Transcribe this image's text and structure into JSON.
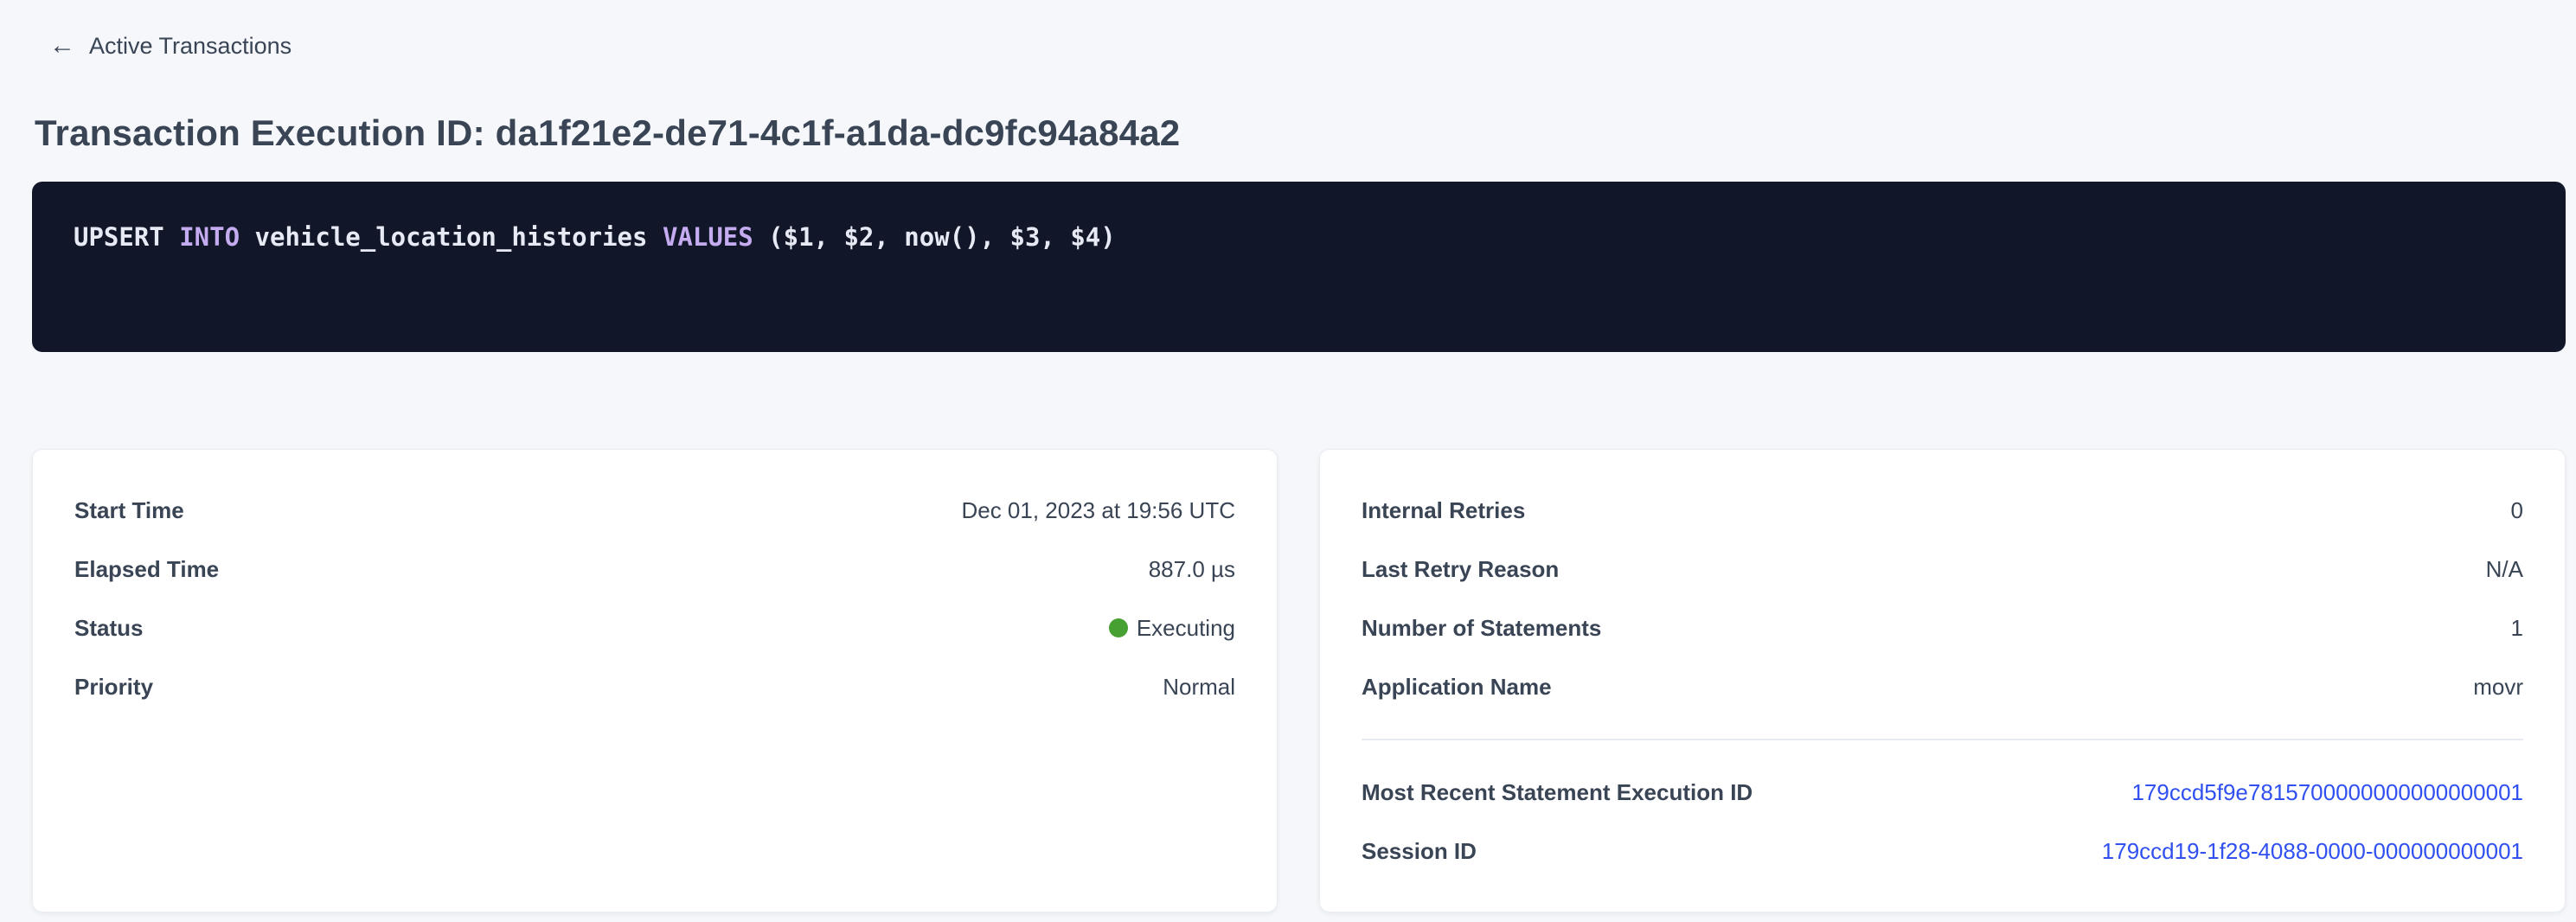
{
  "colors": {
    "page_background": "#f5f7fa",
    "card_background": "#ffffff",
    "text_primary": "#394455",
    "sql_background": "#111729",
    "sql_keyword": "#c5abf0",
    "sql_text": "#e7eaf4",
    "link_blue": "#3050f0",
    "status_executing_green": "#46a032",
    "divider": "#e7ebf1"
  },
  "header": {
    "back_icon": "arrow-left",
    "back_label": "Active Transactions",
    "title": "Transaction Execution ID: da1f21e2-de71-4c1f-a1da-dc9fc94a84a2"
  },
  "sql": {
    "statement_full": "UPSERT INTO vehicle_location_histories VALUES ($1, $2, now(), $3, $4)",
    "segments": [
      {
        "text": "UPSERT ",
        "keyword": false
      },
      {
        "text": "INTO",
        "keyword": true
      },
      {
        "text": " vehicle_location_histories ",
        "keyword": false
      },
      {
        "text": "VALUES",
        "keyword": true
      },
      {
        "text": " ($1, $2, now(), $3, $4)",
        "keyword": false
      }
    ]
  },
  "left_card": {
    "rows": [
      {
        "label": "Start Time",
        "value": "Dec 01, 2023 at 19:56 UTC"
      },
      {
        "label": "Elapsed Time",
        "value": "887.0 µs"
      },
      {
        "label": "Status",
        "value": "Executing"
      },
      {
        "label": "Priority",
        "value": "Normal"
      }
    ]
  },
  "right_card": {
    "rows": [
      {
        "label": "Internal Retries",
        "value": "0"
      },
      {
        "label": "Last Retry Reason",
        "value": "N/A"
      },
      {
        "label": "Number of Statements",
        "value": "1"
      },
      {
        "label": "Application Name",
        "value": "movr"
      }
    ],
    "link_rows": [
      {
        "label": "Most Recent Statement Execution ID",
        "value": "179ccd5f9e7815700000000000000001"
      },
      {
        "label": "Session ID",
        "value": "179ccd19-1f28-4088-0000-000000000001"
      }
    ]
  }
}
